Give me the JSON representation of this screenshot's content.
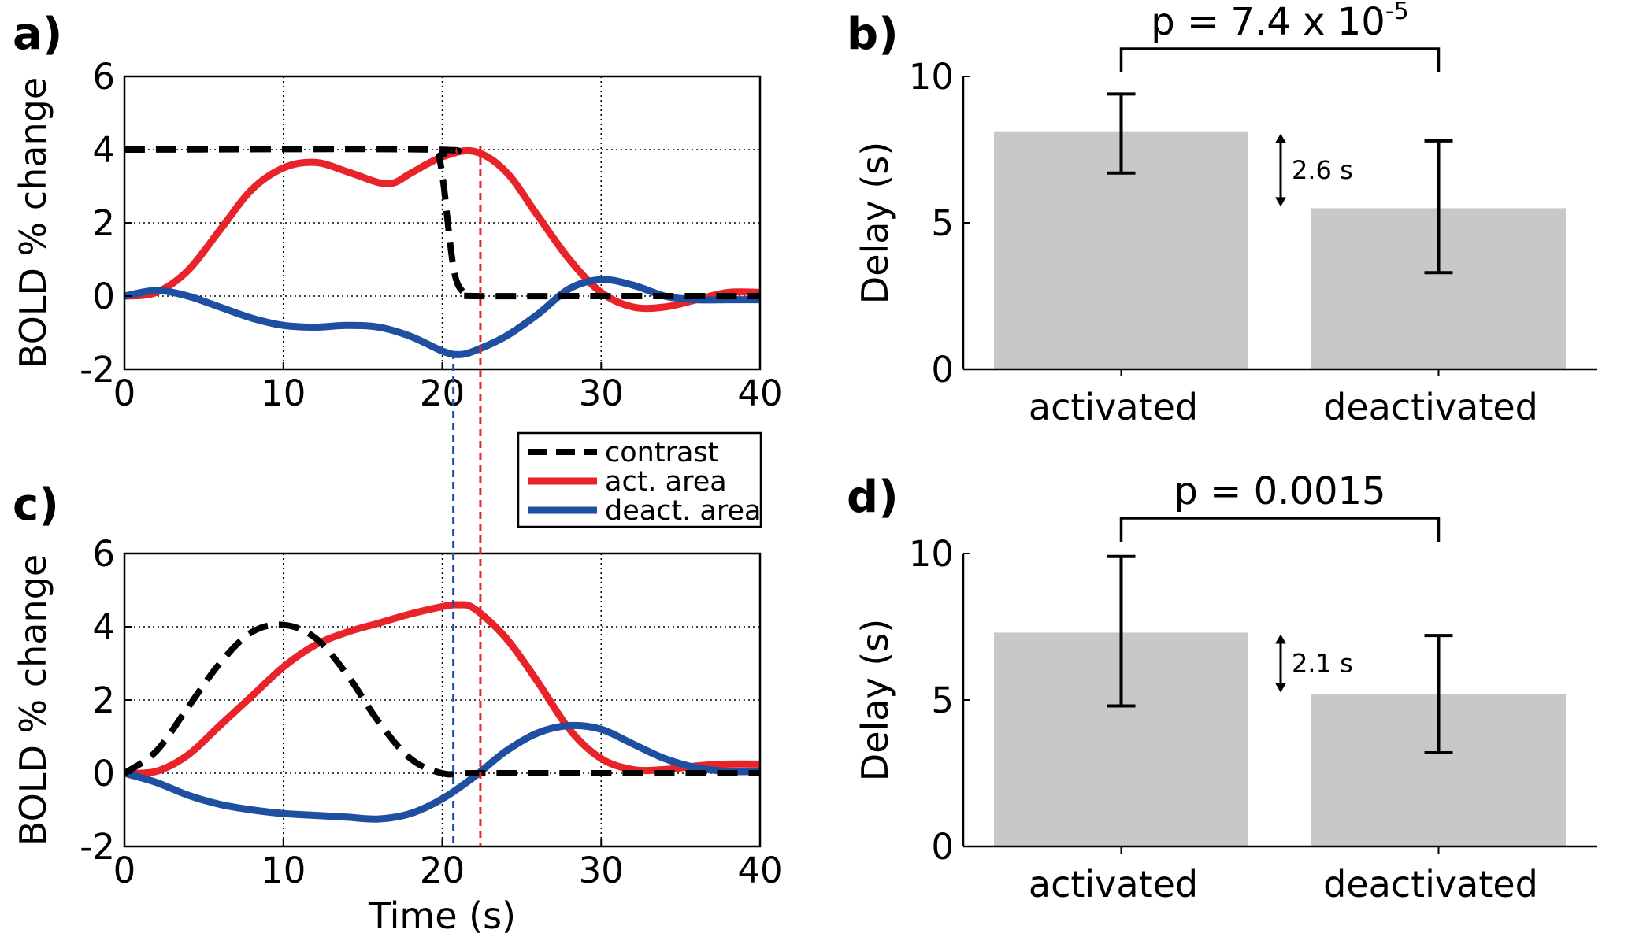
{
  "chart_data": [
    {
      "panel": "a)",
      "type": "line",
      "xlabel": "",
      "ylabel": "BOLD % change",
      "xlim": [
        0,
        40
      ],
      "ylim": [
        -2,
        6
      ],
      "xticks": [
        "0",
        "10",
        "20",
        "30",
        "40"
      ],
      "yticks": [
        "-2",
        "0",
        "2",
        "4",
        "6"
      ],
      "grid": true,
      "series": [
        {
          "name": "contrast",
          "color": "#000000",
          "style": "dashed",
          "x": [
            0,
            19.5,
            19.8,
            20.1,
            20.4,
            20.7,
            21.0,
            21.5,
            22,
            30,
            40
          ],
          "y": [
            4.0,
            4.0,
            3.8,
            3.0,
            1.8,
            0.8,
            0.3,
            0.05,
            0.0,
            0.0,
            0.0
          ]
        },
        {
          "name": "act. area",
          "color": "#e8232a",
          "style": "solid",
          "x": [
            0,
            2,
            4,
            6,
            8,
            10,
            12,
            14,
            16,
            17,
            18,
            20,
            22,
            24,
            26,
            28,
            30,
            32,
            34,
            36,
            38,
            40
          ],
          "y": [
            0.0,
            0.1,
            0.7,
            1.8,
            2.9,
            3.5,
            3.65,
            3.4,
            3.1,
            3.1,
            3.35,
            3.8,
            3.95,
            3.4,
            2.2,
            1.0,
            0.1,
            -0.3,
            -0.3,
            -0.1,
            0.1,
            0.1
          ]
        },
        {
          "name": "deact. area",
          "color": "#1f4fa0",
          "style": "solid",
          "x": [
            0,
            2,
            4,
            6,
            8,
            10,
            12,
            14,
            16,
            18,
            20,
            21,
            22,
            24,
            26,
            28,
            30,
            32,
            34,
            36,
            38,
            40
          ],
          "y": [
            0.0,
            0.15,
            0.0,
            -0.3,
            -0.6,
            -0.8,
            -0.85,
            -0.8,
            -0.85,
            -1.1,
            -1.5,
            -1.6,
            -1.5,
            -1.1,
            -0.5,
            0.2,
            0.45,
            0.3,
            0.0,
            -0.1,
            -0.1,
            -0.1
          ]
        }
      ],
      "vlines": [
        {
          "x": 20.7,
          "color": "#1f4fa0"
        },
        {
          "x": 22.4,
          "color": "#e8232a"
        }
      ]
    },
    {
      "panel": "b)",
      "type": "bar",
      "categories": [
        "activated",
        "deactivated"
      ],
      "values": [
        8.1,
        5.5
      ],
      "errors": [
        [
          6.7,
          9.4
        ],
        [
          3.3,
          7.8
        ]
      ],
      "ylabel": "Delay (s)",
      "ylim": [
        0,
        10
      ],
      "yticks": [
        "0",
        "5",
        "10"
      ],
      "p_value_text": "p = 7.4 x 10",
      "p_value_exp": "-5",
      "difference_label": "2.6 s"
    },
    {
      "panel": "c)",
      "type": "line",
      "xlabel": "Time (s)",
      "ylabel": "BOLD % change",
      "xlim": [
        0,
        40
      ],
      "ylim": [
        -2,
        6
      ],
      "xticks": [
        "0",
        "10",
        "20",
        "30",
        "40"
      ],
      "yticks": [
        "-2",
        "0",
        "2",
        "4",
        "6"
      ],
      "grid": true,
      "series": [
        {
          "name": "contrast",
          "color": "#000000",
          "style": "dashed",
          "x": [
            0,
            2,
            4,
            6,
            8,
            10,
            12,
            14,
            16,
            18,
            20,
            22,
            30,
            40
          ],
          "y": [
            0.0,
            0.6,
            1.8,
            3.0,
            3.85,
            4.05,
            3.7,
            2.7,
            1.4,
            0.4,
            0.0,
            0.0,
            0.0,
            0.0
          ]
        },
        {
          "name": "act. area",
          "color": "#e8232a",
          "style": "solid",
          "x": [
            0,
            2,
            4,
            6,
            8,
            10,
            12,
            14,
            16,
            18,
            20,
            21,
            22,
            24,
            26,
            28,
            30,
            32,
            34,
            36,
            38,
            40
          ],
          "y": [
            0.0,
            0.05,
            0.5,
            1.3,
            2.1,
            2.9,
            3.5,
            3.85,
            4.1,
            4.35,
            4.55,
            4.6,
            4.5,
            3.7,
            2.5,
            1.2,
            0.4,
            0.1,
            0.1,
            0.2,
            0.25,
            0.25
          ]
        },
        {
          "name": "deact. area",
          "color": "#1f4fa0",
          "style": "solid",
          "x": [
            0,
            2,
            4,
            6,
            8,
            10,
            12,
            14,
            16,
            18,
            20,
            22,
            24,
            26,
            28,
            30,
            32,
            34,
            36,
            38,
            40
          ],
          "y": [
            0.0,
            -0.25,
            -0.6,
            -0.85,
            -1.0,
            -1.1,
            -1.15,
            -1.2,
            -1.25,
            -1.1,
            -0.7,
            -0.1,
            0.6,
            1.1,
            1.3,
            1.2,
            0.8,
            0.4,
            0.15,
            0.05,
            0.05
          ]
        }
      ],
      "vlines": [
        {
          "x": 20.7,
          "color": "#1f4fa0"
        },
        {
          "x": 22.4,
          "color": "#e8232a"
        }
      ]
    },
    {
      "panel": "d)",
      "type": "bar",
      "categories": [
        "activated",
        "deactivated"
      ],
      "values": [
        7.3,
        5.2
      ],
      "errors": [
        [
          4.8,
          9.9
        ],
        [
          3.2,
          7.2
        ]
      ],
      "ylabel": "Delay (s)",
      "ylim": [
        0,
        10
      ],
      "yticks": [
        "0",
        "5",
        "10"
      ],
      "p_value_text": "p = 0.0015",
      "difference_label": "2.1 s"
    }
  ],
  "legend": {
    "entries": [
      {
        "label": "contrast",
        "color": "#000000",
        "style": "dashed"
      },
      {
        "label": "act. area",
        "color": "#e8232a",
        "style": "solid"
      },
      {
        "label": "deact. area",
        "color": "#1f4fa0",
        "style": "solid"
      }
    ]
  },
  "colors": {
    "bar_fill": "#c8c8c8",
    "grid": "#000000"
  }
}
